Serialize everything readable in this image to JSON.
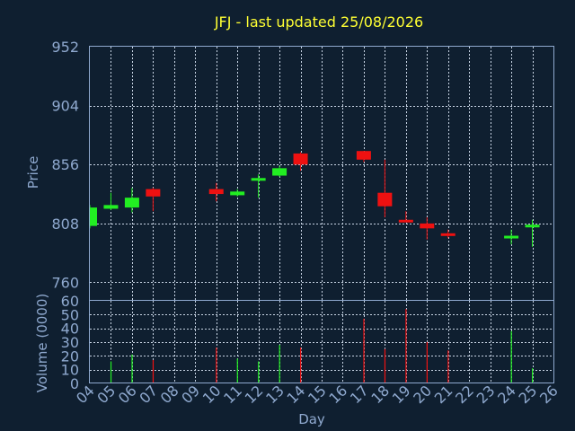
{
  "chart_data": [
    {
      "type": "candlestick",
      "title": "JFJ - last updated 25/08/2026",
      "ylabel": "Price",
      "ylim": [
        745,
        952
      ],
      "yticks": [
        "952",
        "904",
        "856",
        "808",
        "760"
      ],
      "x": [
        "04",
        "05",
        "06",
        "07",
        "08",
        "09",
        "10",
        "11",
        "12",
        "13",
        "14",
        "15",
        "16",
        "17",
        "18",
        "19",
        "20",
        "21",
        "22",
        "23",
        "24",
        "25",
        "26"
      ],
      "up_color": "#22ee22",
      "down_color": "#ee1111",
      "candles": [
        {
          "day": "04",
          "open": 806,
          "close": 821,
          "high": 823,
          "low": 804
        },
        {
          "day": "05",
          "open": 820,
          "close": 823,
          "high": 833,
          "low": 819
        },
        {
          "day": "06",
          "open": 821,
          "close": 829,
          "high": 837,
          "low": 817
        },
        {
          "day": "07",
          "open": 836,
          "close": 830,
          "high": 837,
          "low": 818
        },
        {
          "day": "10",
          "open": 836,
          "close": 832,
          "high": 841,
          "low": 826
        },
        {
          "day": "11",
          "open": 831,
          "close": 834,
          "high": 836,
          "low": 830
        },
        {
          "day": "12",
          "open": 843,
          "close": 845,
          "high": 848,
          "low": 829
        },
        {
          "day": "13",
          "open": 847,
          "close": 853,
          "high": 855,
          "low": 846
        },
        {
          "day": "14",
          "open": 865,
          "close": 856,
          "high": 866,
          "low": 851
        },
        {
          "day": "17",
          "open": 867,
          "close": 860,
          "high": 867,
          "low": 858
        },
        {
          "day": "18",
          "open": 833,
          "close": 822,
          "high": 860,
          "low": 813
        },
        {
          "day": "19",
          "open": 811,
          "close": 809,
          "high": 818,
          "low": 809
        },
        {
          "day": "20",
          "open": 808,
          "close": 804,
          "high": 813,
          "low": 795
        },
        {
          "day": "21",
          "open": 800,
          "close": 798,
          "high": 803,
          "low": 796
        },
        {
          "day": "24",
          "open": 797,
          "close": 798,
          "high": 803,
          "low": 791
        },
        {
          "day": "25",
          "open": 805,
          "close": 807,
          "high": 811,
          "low": 789
        }
      ]
    },
    {
      "type": "bar",
      "ylabel": "Volume (0000)",
      "xlabel": "Day",
      "ylim": [
        0,
        60
      ],
      "yticks": [
        "60",
        "50",
        "40",
        "30",
        "20",
        "10",
        "0"
      ],
      "categories": [
        "04",
        "05",
        "06",
        "07",
        "08",
        "09",
        "10",
        "11",
        "12",
        "13",
        "14",
        "15",
        "16",
        "17",
        "18",
        "19",
        "20",
        "21",
        "22",
        "23",
        "24",
        "25",
        "26"
      ],
      "bars": [
        {
          "day": "05",
          "value": 16,
          "dir": "up"
        },
        {
          "day": "06",
          "value": 21,
          "dir": "up"
        },
        {
          "day": "07",
          "value": 17,
          "dir": "down"
        },
        {
          "day": "10",
          "value": 26,
          "dir": "down"
        },
        {
          "day": "11",
          "value": 18,
          "dir": "up"
        },
        {
          "day": "12",
          "value": 16,
          "dir": "up"
        },
        {
          "day": "13",
          "value": 28,
          "dir": "up"
        },
        {
          "day": "14",
          "value": 26,
          "dir": "down"
        },
        {
          "day": "17",
          "value": 47,
          "dir": "down"
        },
        {
          "day": "18",
          "value": 25,
          "dir": "down"
        },
        {
          "day": "19",
          "value": 54,
          "dir": "down"
        },
        {
          "day": "20",
          "value": 30,
          "dir": "down"
        },
        {
          "day": "21",
          "value": 24,
          "dir": "down"
        },
        {
          "day": "24",
          "value": 38,
          "dir": "up"
        },
        {
          "day": "25",
          "value": 11,
          "dir": "up"
        }
      ]
    }
  ]
}
